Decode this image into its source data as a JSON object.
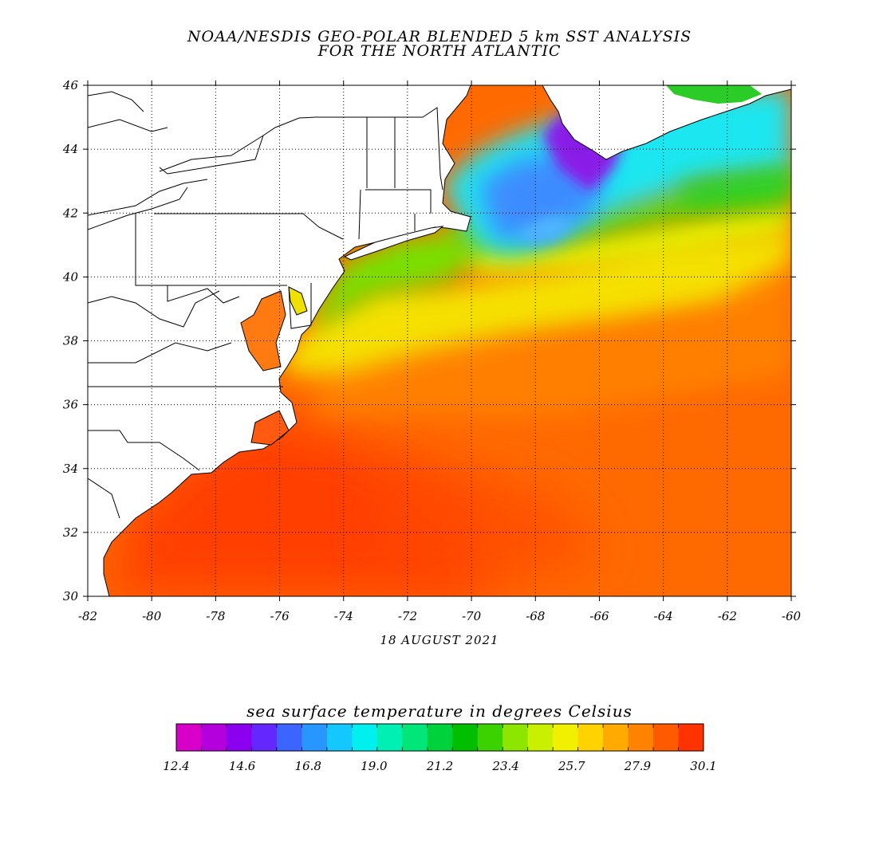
{
  "title": {
    "line1": "NOAA/NESDIS GEO-POLAR BLENDED 5 km SST ANALYSIS",
    "line2": "FOR THE NORTH ATLANTIC"
  },
  "date": "18 AUGUST 2021",
  "map": {
    "lon_range": [
      -82,
      -60
    ],
    "lat_range": [
      30,
      46
    ],
    "lon_ticks": [
      "-82",
      "-80",
      "-78",
      "-76",
      "-74",
      "-72",
      "-70",
      "-68",
      "-66",
      "-64",
      "-62",
      "-60"
    ],
    "lat_ticks": [
      "30",
      "32",
      "34",
      "36",
      "38",
      "40",
      "42",
      "44",
      "46"
    ],
    "grid": "dotted",
    "land_color": "#ffffff"
  },
  "colorbar": {
    "title": "sea surface temperature in degrees Celsius",
    "tick_labels": [
      "12.4",
      "14.6",
      "16.8",
      "19.0",
      "21.2",
      "23.4",
      "25.7",
      "27.9",
      "30.1"
    ],
    "range": [
      12.4,
      30.1
    ],
    "colors": [
      "#d800c8",
      "#b400dc",
      "#8c00f0",
      "#6428ff",
      "#3c64ff",
      "#2896ff",
      "#14c8ff",
      "#00f0f0",
      "#00f0b4",
      "#00e678",
      "#00d23c",
      "#00be00",
      "#3cd200",
      "#8ce600",
      "#c8f000",
      "#f0f000",
      "#ffd200",
      "#ffaa00",
      "#ff8200",
      "#ff5a00",
      "#ff3200"
    ]
  },
  "chart_data": {
    "type": "heatmap",
    "title": "NOAA/NESDIS GEO-POLAR BLENDED 5 km SST ANALYSIS FOR THE NORTH ATLANTIC",
    "xlabel": "",
    "ylabel": "",
    "x_range": [
      -82,
      -60
    ],
    "y_range": [
      30,
      46
    ],
    "value_label": "sea surface temperature in degrees Celsius",
    "value_range": [
      12.4,
      30.1
    ],
    "regions": [
      {
        "lon": -67,
        "lat": 44.2,
        "value": 14.5
      },
      {
        "lon": -69,
        "lat": 43.5,
        "value": 17.5
      },
      {
        "lon": -67,
        "lat": 41.6,
        "value": 18.5
      },
      {
        "lon": -63,
        "lat": 44.5,
        "value": 19.5
      },
      {
        "lon": -63,
        "lat": 42.8,
        "value": 22.0
      },
      {
        "lon": -72,
        "lat": 40.2,
        "value": 23.0
      },
      {
        "lon": -67,
        "lat": 40.0,
        "value": 25.5
      },
      {
        "lon": -74,
        "lat": 38.5,
        "value": 25.5
      },
      {
        "lon": -66,
        "lat": 38.0,
        "value": 28.0
      },
      {
        "lon": -72,
        "lat": 34.0,
        "value": 29.0
      },
      {
        "lon": -79,
        "lat": 31.0,
        "value": 29.5
      }
    ]
  }
}
